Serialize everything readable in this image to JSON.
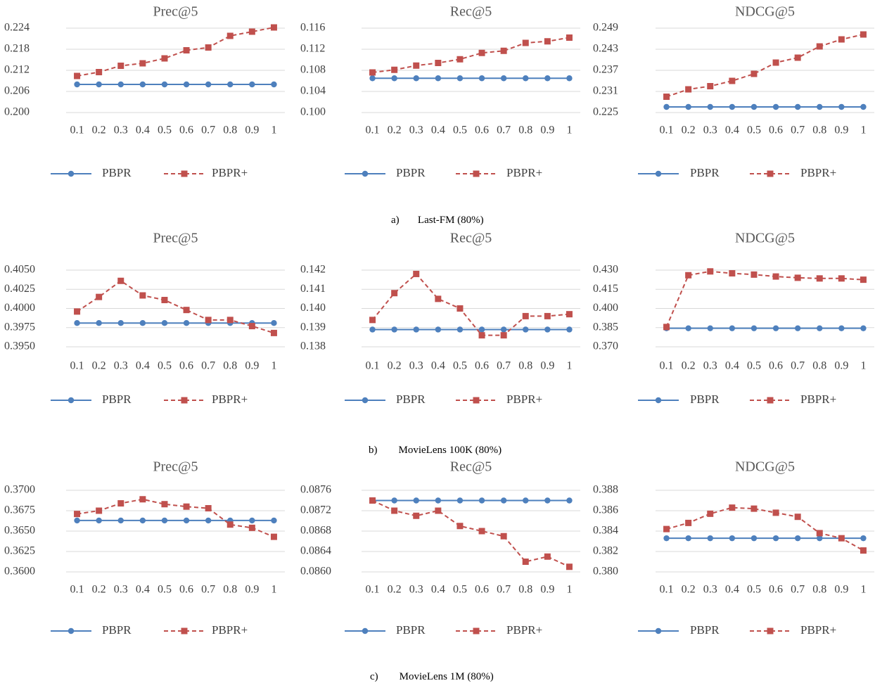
{
  "colors": {
    "pbpr": "#4E80BD",
    "pbpr_plus": "#C0504D",
    "grid": "#D9D9D9",
    "text": "#404040",
    "title": "#595959"
  },
  "legend": {
    "pbpr": "PBPR",
    "pbpr_plus": "PBPR+"
  },
  "x_labels": [
    "0.1",
    "0.2",
    "0.3",
    "0.4",
    "0.5",
    "0.6",
    "0.7",
    "0.8",
    "0.9",
    "1"
  ],
  "captions": [
    {
      "letter": "a)",
      "text": "Last-FM (80%)"
    },
    {
      "letter": "b)",
      "text": "MovieLens 100K (80%)"
    },
    {
      "letter": "c)",
      "text": "MovieLens 1M (80%)"
    }
  ],
  "chart_data": [
    {
      "type": "line",
      "title": "Prec@5",
      "group": "a",
      "y_ticks": [
        "0.200",
        "0.206",
        "0.212",
        "0.218",
        "0.224"
      ],
      "ylim": [
        0.2,
        0.224
      ],
      "series": [
        {
          "name": "PBPR",
          "values": [
            0.208,
            0.208,
            0.208,
            0.208,
            0.208,
            0.208,
            0.208,
            0.208,
            0.208,
            0.208
          ]
        },
        {
          "name": "PBPR+",
          "values": [
            0.2104,
            0.2115,
            0.2133,
            0.214,
            0.2154,
            0.2177,
            0.2185,
            0.2218,
            0.223,
            0.2242
          ]
        }
      ]
    },
    {
      "type": "line",
      "title": "Rec@5",
      "group": "a",
      "y_ticks": [
        "0.100",
        "0.104",
        "0.108",
        "0.112",
        "0.116"
      ],
      "ylim": [
        0.1,
        0.116
      ],
      "series": [
        {
          "name": "PBPR",
          "values": [
            0.1065,
            0.1065,
            0.1065,
            0.1065,
            0.1065,
            0.1065,
            0.1065,
            0.1065,
            0.1065,
            0.1065
          ]
        },
        {
          "name": "PBPR+",
          "values": [
            0.1076,
            0.1081,
            0.1089,
            0.1094,
            0.1101,
            0.1113,
            0.1117,
            0.1132,
            0.1135,
            0.1142
          ]
        }
      ]
    },
    {
      "type": "line",
      "title": "NDCG@5",
      "group": "a",
      "y_ticks": [
        "0.225",
        "0.231",
        "0.237",
        "0.243",
        "0.249"
      ],
      "ylim": [
        0.225,
        0.249
      ],
      "series": [
        {
          "name": "PBPR",
          "values": [
            0.2266,
            0.2266,
            0.2266,
            0.2266,
            0.2266,
            0.2266,
            0.2266,
            0.2266,
            0.2266,
            0.2266
          ]
        },
        {
          "name": "PBPR+",
          "values": [
            0.2295,
            0.2316,
            0.2325,
            0.234,
            0.236,
            0.2392,
            0.2406,
            0.2438,
            0.2458,
            0.2472
          ]
        }
      ]
    },
    {
      "type": "line",
      "title": "Prec@5",
      "group": "b",
      "y_ticks": [
        "0.3950",
        "0.3975",
        "0.4000",
        "0.4025",
        "0.4050"
      ],
      "ylim": [
        0.395,
        0.405
      ],
      "series": [
        {
          "name": "PBPR",
          "values": [
            0.3981,
            0.3981,
            0.3981,
            0.3981,
            0.3981,
            0.3981,
            0.3981,
            0.3981,
            0.3981,
            0.3981
          ]
        },
        {
          "name": "PBPR+",
          "values": [
            0.3996,
            0.4015,
            0.4036,
            0.4017,
            0.4011,
            0.3998,
            0.3985,
            0.3985,
            0.3977,
            0.3968
          ]
        }
      ]
    },
    {
      "type": "line",
      "title": "Rec@5",
      "group": "b",
      "y_ticks": [
        "0.138",
        "0.139",
        "0.140",
        "0.141",
        "0.142"
      ],
      "ylim": [
        0.138,
        0.142
      ],
      "series": [
        {
          "name": "PBPR",
          "values": [
            0.1389,
            0.1389,
            0.1389,
            0.1389,
            0.1389,
            0.1389,
            0.1389,
            0.1389,
            0.1389,
            0.1389
          ]
        },
        {
          "name": "PBPR+",
          "values": [
            0.1394,
            0.1408,
            0.1418,
            0.1405,
            0.14,
            0.1386,
            0.1386,
            0.1396,
            0.1396,
            0.1397
          ]
        }
      ]
    },
    {
      "type": "line",
      "title": "NDCG@5",
      "group": "b",
      "y_ticks": [
        "0.370",
        "0.385",
        "0.400",
        "0.415",
        "0.430"
      ],
      "ylim": [
        0.37,
        0.43
      ],
      "series": [
        {
          "name": "PBPR",
          "values": [
            0.3845,
            0.3845,
            0.3845,
            0.3845,
            0.3845,
            0.3845,
            0.3845,
            0.3845,
            0.3845,
            0.3845
          ]
        },
        {
          "name": "PBPR+",
          "values": [
            0.3855,
            0.426,
            0.429,
            0.4275,
            0.4265,
            0.425,
            0.424,
            0.4235,
            0.4235,
            0.4225
          ]
        }
      ]
    },
    {
      "type": "line",
      "title": "Prec@5",
      "group": "c",
      "y_ticks": [
        "0.3600",
        "0.3625",
        "0.3650",
        "0.3675",
        "0.3700"
      ],
      "ylim": [
        0.36,
        0.37
      ],
      "series": [
        {
          "name": "PBPR",
          "values": [
            0.3663,
            0.3663,
            0.3663,
            0.3663,
            0.3663,
            0.3663,
            0.3663,
            0.3663,
            0.3663,
            0.3663
          ]
        },
        {
          "name": "PBPR+",
          "values": [
            0.3671,
            0.3675,
            0.3684,
            0.3689,
            0.3683,
            0.368,
            0.3678,
            0.3658,
            0.3654,
            0.3643
          ]
        }
      ]
    },
    {
      "type": "line",
      "title": "Rec@5",
      "group": "c",
      "y_ticks": [
        "0.0860",
        "0.0864",
        "0.0868",
        "0.0872",
        "0.0876"
      ],
      "ylim": [
        0.086,
        0.0876
      ],
      "series": [
        {
          "name": "PBPR",
          "values": [
            0.0874,
            0.0874,
            0.0874,
            0.0874,
            0.0874,
            0.0874,
            0.0874,
            0.0874,
            0.0874,
            0.0874
          ]
        },
        {
          "name": "PBPR+",
          "values": [
            0.0874,
            0.0872,
            0.0871,
            0.0872,
            0.0869,
            0.0868,
            0.0867,
            0.0862,
            0.0863,
            0.0861
          ]
        }
      ]
    },
    {
      "type": "line",
      "title": "NDCG@5",
      "group": "c",
      "y_ticks": [
        "0.380",
        "0.382",
        "0.384",
        "0.386",
        "0.388"
      ],
      "ylim": [
        0.38,
        0.388
      ],
      "series": [
        {
          "name": "PBPR",
          "values": [
            0.3833,
            0.3833,
            0.3833,
            0.3833,
            0.3833,
            0.3833,
            0.3833,
            0.3833,
            0.3833,
            0.3833
          ]
        },
        {
          "name": "PBPR+",
          "values": [
            0.3842,
            0.3848,
            0.3857,
            0.3863,
            0.3862,
            0.3858,
            0.3854,
            0.3838,
            0.3833,
            0.3821
          ]
        }
      ]
    }
  ]
}
